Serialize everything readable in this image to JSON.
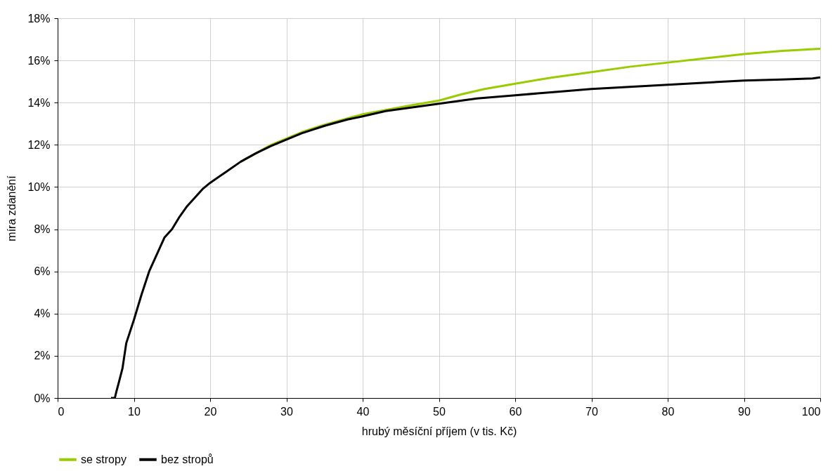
{
  "chart_data": {
    "type": "line",
    "xlabel": "hrubý měsíční příjem (v tis. Kč)",
    "ylabel": "míra zdanění",
    "xlim": [
      0,
      100
    ],
    "xticks": [
      0,
      10,
      20,
      30,
      40,
      50,
      60,
      70,
      80,
      90,
      100
    ],
    "ylim": [
      0,
      18
    ],
    "yticks": [
      {
        "value": 0,
        "label": "0%"
      },
      {
        "value": 2,
        "label": "2%"
      },
      {
        "value": 4,
        "label": "4%"
      },
      {
        "value": 6,
        "label": "6%"
      },
      {
        "value": 8,
        "label": "8%"
      },
      {
        "value": 10,
        "label": "10%"
      },
      {
        "value": 12,
        "label": "12%"
      },
      {
        "value": 14,
        "label": "14%"
      },
      {
        "value": 16,
        "label": "16%"
      },
      {
        "value": 18,
        "label": "18%"
      }
    ],
    "grid": true,
    "legend": "bottom",
    "series": [
      {
        "name": "se stropy",
        "color": "#99cc00",
        "x": [
          24,
          26,
          28,
          30,
          32,
          35,
          38,
          40,
          43,
          46,
          50,
          53,
          56,
          60,
          65,
          70,
          75,
          80,
          85,
          90,
          95,
          100
        ],
        "values": [
          11.2,
          11.6,
          12.0,
          12.3,
          12.6,
          12.95,
          13.25,
          13.45,
          13.65,
          13.85,
          14.1,
          14.4,
          14.65,
          14.9,
          15.2,
          15.45,
          15.7,
          15.9,
          16.1,
          16.3,
          16.45,
          16.55
        ]
      },
      {
        "name": "bez stropů",
        "color": "#000000",
        "x": [
          7,
          7.5,
          7.7,
          8,
          8.5,
          9,
          10,
          11,
          12,
          13,
          14,
          15,
          16,
          17,
          18,
          19,
          20,
          22,
          24,
          26,
          28,
          30,
          32,
          35,
          38,
          40,
          43,
          46,
          50,
          55,
          60,
          65,
          70,
          75,
          80,
          85,
          90,
          95,
          99,
          100
        ],
        "values": [
          0,
          0,
          0.3,
          0.7,
          1.4,
          2.6,
          3.7,
          4.9,
          6.0,
          6.8,
          7.6,
          8.0,
          8.6,
          9.1,
          9.5,
          9.9,
          10.2,
          10.7,
          11.2,
          11.6,
          11.95,
          12.25,
          12.55,
          12.9,
          13.2,
          13.35,
          13.6,
          13.75,
          13.95,
          14.2,
          14.35,
          14.5,
          14.65,
          14.75,
          14.85,
          14.95,
          15.05,
          15.1,
          15.15,
          15.2
        ]
      }
    ]
  }
}
